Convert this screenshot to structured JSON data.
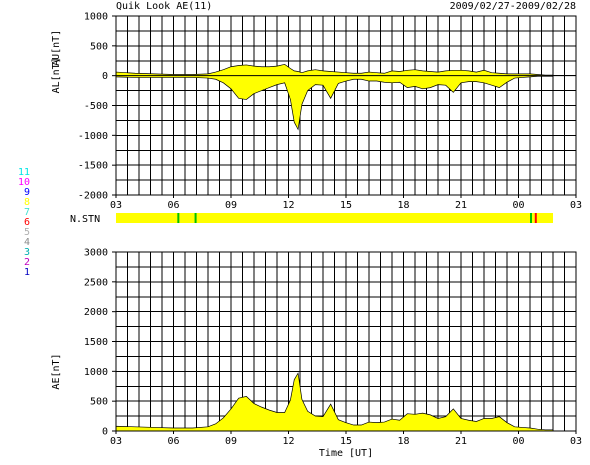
{
  "header": {
    "title": "Quik Look AE(11)",
    "date_range": "2009/02/27-2009/02/28"
  },
  "colors": {
    "fill": "#ffff00",
    "line": "#000000",
    "stn_bar": "#ffff00",
    "stn_marks": [
      "#00c000",
      "#ff0000"
    ]
  },
  "station_legend": [
    {
      "label": "11",
      "color": "#00e5e5"
    },
    {
      "label": "10",
      "color": "#ff00ff"
    },
    {
      "label": "9",
      "color": "#0000ff"
    },
    {
      "label": "8",
      "color": "#ffff00"
    },
    {
      "label": "7",
      "color": "#40e0d0"
    },
    {
      "label": "6",
      "color": "#ff0000"
    },
    {
      "label": "5",
      "color": "#b0b0b0"
    },
    {
      "label": "4",
      "color": "#8a8a8a"
    },
    {
      "label": "3",
      "color": "#00b0b0"
    },
    {
      "label": "2",
      "color": "#c000c0"
    },
    {
      "label": "1",
      "color": "#0000c0"
    }
  ],
  "nstn": {
    "label": "N.STN",
    "bar_start_hour": 3,
    "bar_end_hour": 25.8,
    "marks": [
      {
        "hour": 6.2,
        "color": "#00c000"
      },
      {
        "hour": 7.1,
        "color": "#00c000"
      },
      {
        "hour": 24.6,
        "color": "#00c000"
      },
      {
        "hour": 24.85,
        "color": "#ff0000"
      }
    ]
  },
  "chart_data": [
    {
      "type": "area",
      "name": "AU/AL",
      "ylabel_upper": "AU[nT]",
      "ylabel_lower": "AL[nT]",
      "ylim": [
        -2000,
        1000
      ],
      "yticks": [
        1000,
        500,
        0,
        -500,
        -1000,
        -1500,
        -2000
      ],
      "xlim": [
        3,
        27
      ],
      "xtick_labels": [
        "03",
        "06",
        "09",
        "12",
        "15",
        "18",
        "21",
        "00",
        "03"
      ],
      "x_hours": [
        3,
        4,
        5,
        6,
        7,
        7.8,
        8.2,
        8.6,
        9,
        9.4,
        9.8,
        10.2,
        10.6,
        11,
        11.4,
        11.8,
        12.1,
        12.3,
        12.5,
        12.7,
        13,
        13.4,
        13.8,
        14.2,
        14.6,
        15,
        15.4,
        15.8,
        16.2,
        16.6,
        17,
        17.4,
        17.8,
        18.2,
        18.6,
        19,
        19.4,
        19.8,
        20.2,
        20.6,
        21,
        21.4,
        21.8,
        22.2,
        22.6,
        23,
        23.4,
        23.8,
        24.2,
        24.6,
        25,
        25.4,
        25.8
      ],
      "au": [
        60,
        40,
        30,
        20,
        20,
        30,
        60,
        100,
        150,
        170,
        180,
        160,
        150,
        150,
        160,
        190,
        120,
        80,
        70,
        50,
        80,
        100,
        80,
        70,
        60,
        50,
        40,
        40,
        60,
        50,
        40,
        80,
        70,
        90,
        100,
        80,
        70,
        60,
        80,
        90,
        90,
        80,
        60,
        90,
        50,
        40,
        30,
        30,
        30,
        30,
        20,
        10,
        10
      ],
      "al": [
        -20,
        -30,
        -30,
        -30,
        -30,
        -40,
        -60,
        -120,
        -220,
        -380,
        -400,
        -300,
        -250,
        -200,
        -150,
        -120,
        -400,
        -780,
        -900,
        -480,
        -250,
        -150,
        -160,
        -380,
        -130,
        -90,
        -60,
        -60,
        -90,
        -90,
        -110,
        -120,
        -110,
        -200,
        -180,
        -220,
        -200,
        -150,
        -160,
        -280,
        -120,
        -100,
        -100,
        -120,
        -160,
        -200,
        -110,
        -40,
        -30,
        -20,
        -10,
        -10,
        -10
      ]
    },
    {
      "type": "area",
      "name": "AE",
      "ylabel": "AE[nT]",
      "xlabel": "Time [UT]",
      "ylim": [
        0,
        3000
      ],
      "yticks": [
        3000,
        2500,
        2000,
        1500,
        1000,
        500,
        0
      ],
      "xlim": [
        3,
        27
      ],
      "xtick_labels": [
        "03",
        "06",
        "09",
        "12",
        "15",
        "18",
        "21",
        "00",
        "03"
      ],
      "x_hours": [
        3,
        4,
        5,
        6,
        7,
        7.8,
        8.2,
        8.6,
        9,
        9.4,
        9.8,
        10.2,
        10.6,
        11,
        11.4,
        11.8,
        12.1,
        12.3,
        12.5,
        12.7,
        13,
        13.4,
        13.8,
        14.2,
        14.6,
        15,
        15.4,
        15.8,
        16.2,
        16.6,
        17,
        17.4,
        17.8,
        18.2,
        18.6,
        19,
        19.4,
        19.8,
        20.2,
        20.6,
        21,
        21.4,
        21.8,
        22.2,
        22.6,
        23,
        23.4,
        23.8,
        24.2,
        24.6,
        25,
        25.4,
        25.8
      ],
      "values": [
        80,
        70,
        60,
        50,
        50,
        70,
        120,
        220,
        370,
        550,
        580,
        460,
        400,
        350,
        310,
        310,
        520,
        860,
        970,
        530,
        330,
        250,
        240,
        450,
        190,
        140,
        100,
        100,
        150,
        140,
        150,
        200,
        180,
        290,
        280,
        300,
        270,
        210,
        240,
        370,
        210,
        180,
        160,
        210,
        210,
        240,
        140,
        70,
        60,
        50,
        30,
        20,
        20
      ]
    }
  ]
}
